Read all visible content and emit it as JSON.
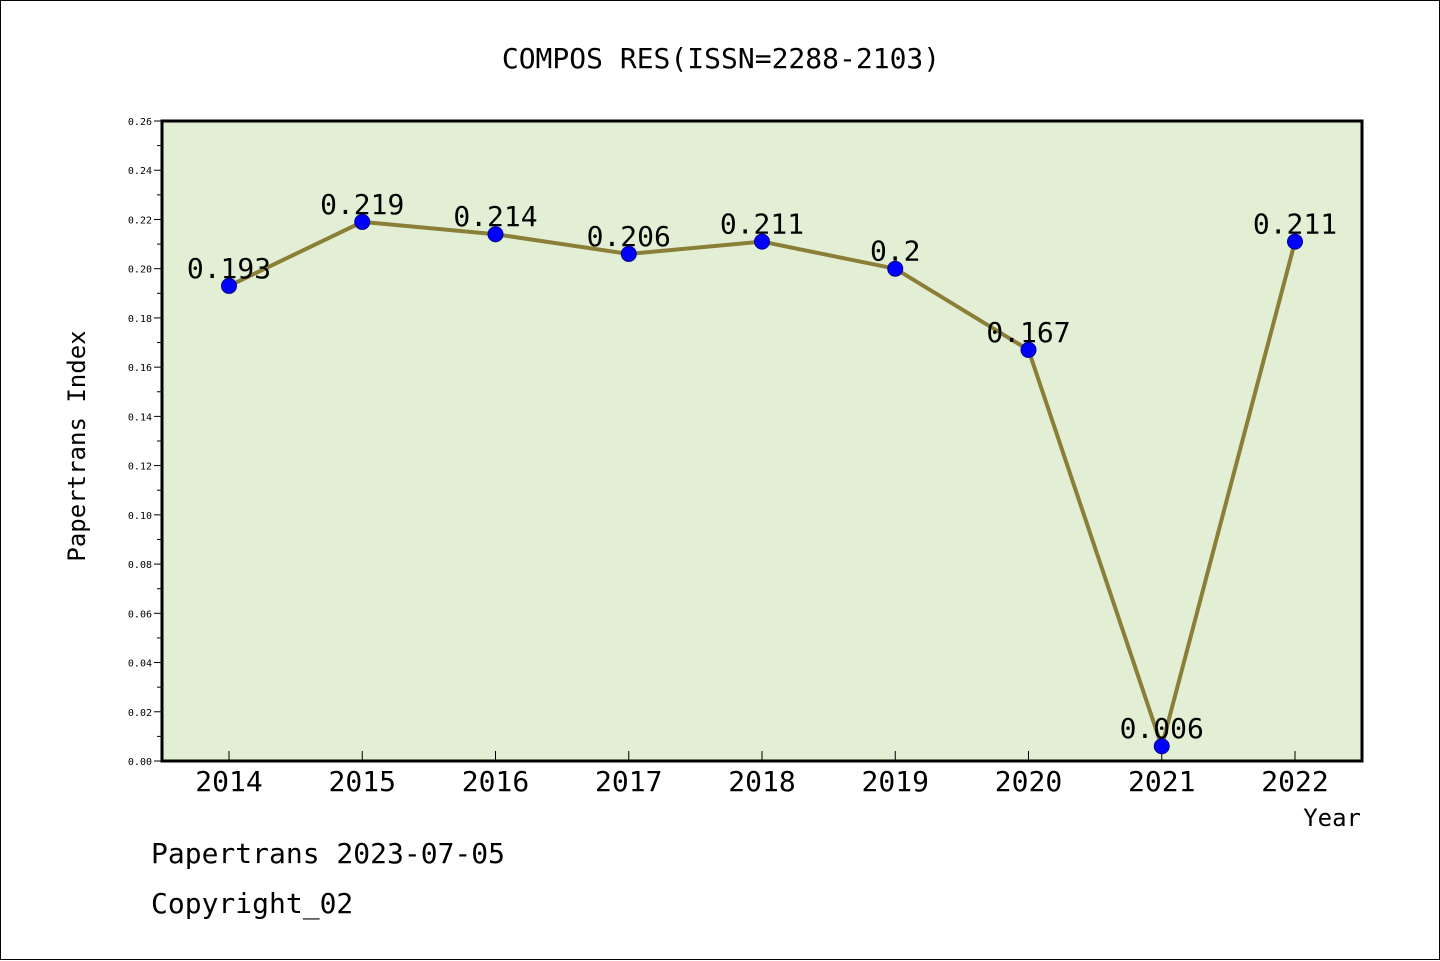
{
  "chart_data": {
    "type": "line",
    "title": "COMPOS RES(ISSN=2288-2103)",
    "xlabel": "Year",
    "ylabel": "Papertrans Index",
    "categories": [
      "2014",
      "2015",
      "2016",
      "2017",
      "2018",
      "2019",
      "2020",
      "2021",
      "2022"
    ],
    "values": [
      0.193,
      0.219,
      0.214,
      0.206,
      0.211,
      0.2,
      0.167,
      0.006,
      0.211
    ],
    "data_labels": [
      "0.193",
      "0.219",
      "0.214",
      "0.206",
      "0.211",
      "0.2",
      "0.167",
      "0.006",
      "0.211"
    ],
    "ylim": [
      0,
      0.26
    ],
    "yticks": [
      "0.00",
      "0.02",
      "0.04",
      "0.06",
      "0.08",
      "0.10",
      "0.12",
      "0.14",
      "0.16",
      "0.18",
      "0.20",
      "0.22",
      "0.24",
      "0.26"
    ],
    "grid": false,
    "colors": {
      "plot_background": "#e2efd5",
      "line": "#8b7e36",
      "marker": "#0000ff"
    }
  },
  "footer": {
    "line1": "Papertrans 2023-07-05",
    "line2": "Copyright_02"
  }
}
